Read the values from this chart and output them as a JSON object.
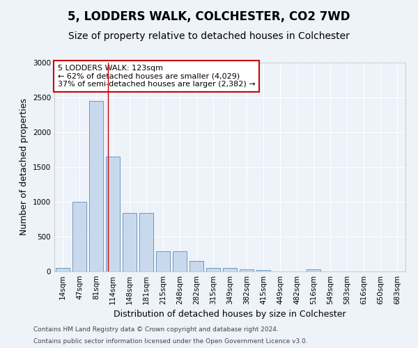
{
  "title": "5, LODDERS WALK, COLCHESTER, CO2 7WD",
  "subtitle": "Size of property relative to detached houses in Colchester",
  "xlabel": "Distribution of detached houses by size in Colchester",
  "ylabel": "Number of detached properties",
  "bar_color": "#c9d9ed",
  "bar_edge_color": "#5b8db8",
  "categories": [
    "14sqm",
    "47sqm",
    "81sqm",
    "114sqm",
    "148sqm",
    "181sqm",
    "215sqm",
    "248sqm",
    "282sqm",
    "315sqm",
    "349sqm",
    "382sqm",
    "415sqm",
    "449sqm",
    "482sqm",
    "516sqm",
    "549sqm",
    "583sqm",
    "616sqm",
    "650sqm",
    "683sqm"
  ],
  "values": [
    55,
    1000,
    2450,
    1650,
    840,
    840,
    290,
    290,
    150,
    55,
    55,
    35,
    25,
    0,
    0,
    35,
    0,
    0,
    0,
    0,
    0
  ],
  "ylim": [
    0,
    3000
  ],
  "yticks": [
    0,
    500,
    1000,
    1500,
    2000,
    2500,
    3000
  ],
  "annotation_text": "5 LODDERS WALK: 123sqm\n← 62% of detached houses are smaller (4,029)\n37% of semi-detached houses are larger (2,382) →",
  "vline_x": 2.72,
  "vline_color": "#cc0000",
  "footer_line1": "Contains HM Land Registry data © Crown copyright and database right 2024.",
  "footer_line2": "Contains public sector information licensed under the Open Government Licence v3.0.",
  "background_color": "#eef2f9",
  "grid_color": "#ffffff",
  "title_fontsize": 12,
  "subtitle_fontsize": 10,
  "xlabel_fontsize": 9,
  "ylabel_fontsize": 9,
  "tick_fontsize": 7.5,
  "footer_fontsize": 6.5,
  "annot_fontsize": 8
}
